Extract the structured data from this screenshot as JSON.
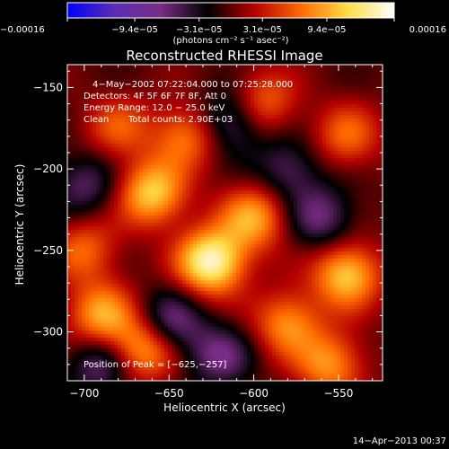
{
  "chart_data": {
    "type": "heatmap",
    "title": "Reconstructed RHESSI Image",
    "xlabel": "Heliocentric X (arcsec)",
    "ylabel": "Heliocentric Y (arcsec)",
    "xlim": [
      -710,
      -524
    ],
    "ylim": [
      -330,
      -136
    ],
    "x_ticks": [
      -700,
      -650,
      -600,
      -550
    ],
    "x_tick_labels": [
      "−700",
      "−650",
      "−600",
      "−550"
    ],
    "y_ticks": [
      -150,
      -200,
      -250,
      -300
    ],
    "y_tick_labels": [
      "−150",
      "−200",
      "−250",
      "−300"
    ],
    "colorbar": {
      "min": -0.00016,
      "max": 0.00016,
      "ticks": [
        -0.00016,
        -9.4e-05,
        -3.1e-05,
        3.1e-05,
        9.4e-05,
        0.00016
      ],
      "tick_labels": [
        "−0.00016",
        "−9.4e−05",
        "−3.1e−05",
        "3.1e−05",
        "9.4e−05",
        "0.00016"
      ],
      "units": "(photons cm⁻² s⁻¹ asec⁻²)",
      "palette": [
        "#0000ff",
        "#5a2db4",
        "#7a2c86",
        "#000000",
        "#b40000",
        "#ff6a00",
        "#ffdc46",
        "#ffffff"
      ]
    },
    "annotations": [
      "4−May−2002 07:22:04.000 to 07:25:28.000",
      "Detectors: 4F 5F 6F 7F 8F, Att 0",
      "Energy Range: 12.0 − 25.0 keV",
      "Clean",
      "Total counts: 2.90E+03"
    ],
    "position_label": "Position of Peak = [−625,−257]",
    "peak": {
      "x": -625,
      "y": -257
    },
    "bright_sources": [
      {
        "x": -625,
        "y": -257,
        "value": 0.00016
      },
      {
        "x": -660,
        "y": -215,
        "value": 0.00012
      },
      {
        "x": -545,
        "y": -265,
        "value": 0.00012
      },
      {
        "x": -690,
        "y": -290,
        "value": 0.0001
      },
      {
        "x": -600,
        "y": -230,
        "value": 0.0001
      },
      {
        "x": -665,
        "y": -310,
        "value": 0.00011
      },
      {
        "x": -595,
        "y": -160,
        "value": 8e-05
      },
      {
        "x": -545,
        "y": -180,
        "value": 7e-05
      },
      {
        "x": -680,
        "y": -175,
        "value": 6e-05
      },
      {
        "x": -580,
        "y": -295,
        "value": 9e-05
      },
      {
        "x": -555,
        "y": -320,
        "value": 9e-05
      },
      {
        "x": -700,
        "y": -250,
        "value": 7e-05
      },
      {
        "x": -640,
        "y": -180,
        "value": 8e-05
      }
    ],
    "dark_regions": [
      {
        "x": -612,
        "y": -170,
        "value": -8e-05
      },
      {
        "x": -690,
        "y": -320,
        "value": -7e-05
      },
      {
        "x": -650,
        "y": -295,
        "value": -8e-05
      },
      {
        "x": -560,
        "y": -230,
        "value": -7e-05
      },
      {
        "x": -700,
        "y": -210,
        "value": -6e-05
      },
      {
        "x": -580,
        "y": -200,
        "value": -6e-05
      },
      {
        "x": -620,
        "y": -315,
        "value": -7e-05
      }
    ]
  },
  "footer": {
    "timestamp": "14−Apr−2013 00:37"
  }
}
